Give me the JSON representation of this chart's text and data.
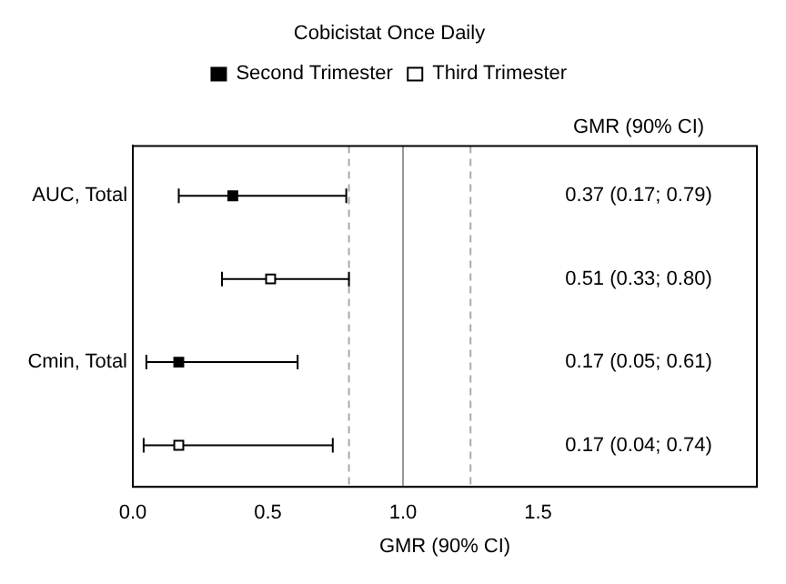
{
  "chart_data": {
    "type": "scatter",
    "title": "Cobicistat Once Daily",
    "orientation": "horizontal",
    "categories": [
      "AUC, Total",
      null,
      "Cmin, Total",
      null
    ],
    "series": [
      {
        "name": "Second Trimester",
        "color": "#000000",
        "values": [
          0.37,
          null,
          0.17,
          null
        ],
        "errors": [
          [
            0.17,
            0.79
          ],
          null,
          [
            0.05,
            0.61
          ],
          null
        ]
      },
      {
        "name": "Third Trimester",
        "color": "#ffffff",
        "values": [
          null,
          0.51,
          null,
          0.17
        ],
        "errors": [
          null,
          [
            0.33,
            0.8
          ],
          null,
          [
            0.04,
            0.74
          ]
        ]
      }
    ],
    "xlabel": "GMR (90% CI)",
    "xlim": [
      0,
      2.31
    ],
    "xticks": [
      {
        "value": 0,
        "label": "0.0"
      },
      {
        "value": 0.5,
        "label": "0.5"
      },
      {
        "value": 1,
        "label": "1.0"
      },
      {
        "value": 1.5,
        "label": "1.5"
      }
    ],
    "ref_lines": [
      {
        "axis": "x",
        "value": 0.8,
        "color": "#aaaaaa",
        "line_style": "dashed"
      },
      {
        "axis": "x",
        "value": 1,
        "color": "#999999",
        "line_style": "solid"
      },
      {
        "axis": "x",
        "value": 1.25,
        "color": "#aaaaaa",
        "line_style": "dashed"
      }
    ],
    "annotations": [
      "GMR (90% CI)",
      "0.37 (0.17; 0.79)",
      "0.51 (0.33; 0.80)",
      "0.17 (0.05; 0.61)",
      "0.17 (0.04; 0.74)"
    ],
    "marker": "square",
    "legend": "top",
    "grid": false
  }
}
